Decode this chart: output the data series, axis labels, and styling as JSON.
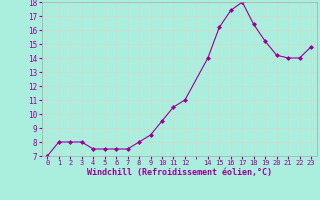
{
  "x": [
    0,
    1,
    2,
    3,
    4,
    5,
    6,
    7,
    8,
    9,
    10,
    11,
    12,
    14,
    15,
    16,
    17,
    18,
    19,
    20,
    21,
    22,
    23
  ],
  "y": [
    7.0,
    8.0,
    8.0,
    8.0,
    7.5,
    7.5,
    7.5,
    7.5,
    8.0,
    8.5,
    9.5,
    10.5,
    11.0,
    14.0,
    16.2,
    17.4,
    18.0,
    16.4,
    15.2,
    14.2,
    14.0,
    14.0,
    14.8
  ],
  "line_color": "#990099",
  "marker": "D",
  "marker_size": 2,
  "bg_color": "#aaeedd",
  "grid_color": "#ccddcc",
  "xlabel": "Windchill (Refroidissement éolien,°C)",
  "xlabel_color": "#990099",
  "tick_color": "#990099",
  "ylim": [
    7,
    18
  ],
  "xlim": [
    -0.5,
    23.5
  ],
  "yticks": [
    7,
    8,
    9,
    10,
    11,
    12,
    13,
    14,
    15,
    16,
    17,
    18
  ],
  "xticks": [
    0,
    1,
    2,
    3,
    4,
    5,
    6,
    7,
    8,
    9,
    10,
    11,
    12,
    14,
    15,
    16,
    17,
    18,
    19,
    20,
    21,
    22,
    23
  ]
}
